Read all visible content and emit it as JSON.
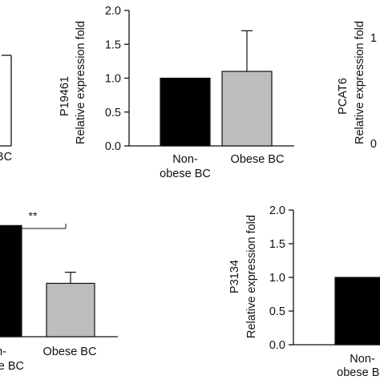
{
  "colors": {
    "dark_bar": "#000000",
    "light_bar": "#bdbdbd",
    "axis": "#111111"
  },
  "chart_data": [
    {
      "type": "bar",
      "panel": "top-left (partially cropped)",
      "categories": [
        "",
        "BC"
      ],
      "series": [
        {
          "values": [
            null,
            null
          ]
        }
      ],
      "ylabel": "",
      "ylim": [
        0,
        2.0
      ],
      "yticks": []
    },
    {
      "type": "bar",
      "panel": "top-middle",
      "categories": [
        "Non-\nobese BC",
        "Obese BC"
      ],
      "series": [
        {
          "values": [
            1.0,
            1.1
          ],
          "errors": [
            0,
            0.6
          ]
        }
      ],
      "ylabel_top": "P19461",
      "ylabel": "Relative expression fold",
      "ylim": [
        0,
        2.0
      ],
      "yticks": [
        "0.0",
        "0.5",
        "1.0",
        "1.5",
        "2.0"
      ],
      "bar_colors": [
        "#000000",
        "#bdbdbd"
      ]
    },
    {
      "type": "bar",
      "panel": "top-right (cropped)",
      "categories": [],
      "series": [],
      "ylabel_top": "PCAT6",
      "ylabel": "Relative expression fold",
      "ylim": [
        0,
        2.0
      ],
      "yticks": [
        "0",
        "1"
      ]
    },
    {
      "type": "bar",
      "panel": "bottom-left (partially cropped)",
      "categories": [
        "Non-\nobese BC",
        "Obese BC"
      ],
      "series": [
        {
          "values": [
            1.0,
            0.48
          ],
          "errors": [
            0,
            0.1
          ]
        }
      ],
      "ylim": [
        0,
        1.5
      ],
      "significance": "**",
      "bar_colors": [
        "#000000",
        "#bdbdbd"
      ]
    },
    {
      "type": "bar",
      "panel": "bottom-right",
      "categories": [
        "Non-\nobese BC"
      ],
      "series": [
        {
          "values": [
            1.0
          ],
          "errors": [
            0
          ]
        }
      ],
      "ylabel_top": "P3134",
      "ylabel": "Relative expression fold",
      "ylim": [
        0,
        2.0
      ],
      "yticks": [
        "0.0",
        "0.5",
        "1.0",
        "1.5",
        "2.0"
      ],
      "bar_colors": [
        "#000000"
      ]
    }
  ]
}
